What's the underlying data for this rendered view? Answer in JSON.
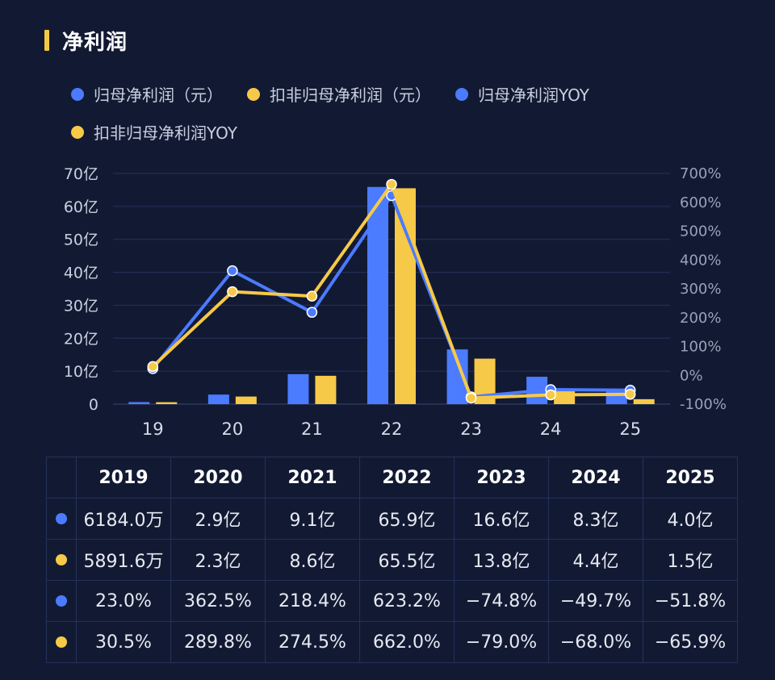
{
  "header": {
    "title": "净利润"
  },
  "legend": [
    {
      "label": "归母净利润（元）",
      "color": "#4b7bff"
    },
    {
      "label": "扣非归母净利润（元）",
      "color": "#f7c948"
    },
    {
      "label": "归母净利润YOY",
      "color": "#4b7bff"
    },
    {
      "label": "扣非归母净利润YOY",
      "color": "#f7c948"
    }
  ],
  "chart_data": {
    "type": "bar",
    "categories": [
      "19",
      "20",
      "21",
      "22",
      "23",
      "24",
      "25"
    ],
    "y_left": {
      "ticks": [
        "0",
        "10亿",
        "20亿",
        "30亿",
        "40亿",
        "50亿",
        "60亿",
        "70亿"
      ],
      "range": [
        0,
        70
      ]
    },
    "y_right": {
      "ticks": [
        "-100%",
        "0%",
        "100%",
        "200%",
        "300%",
        "400%",
        "500%",
        "600%",
        "700%"
      ],
      "range": [
        -100,
        700
      ]
    },
    "grid": true,
    "series": [
      {
        "name": "归母净利润（元）",
        "kind": "bar",
        "axis": "left",
        "color": "#4b7bff",
        "values": [
          0.6184,
          2.9,
          9.1,
          65.9,
          16.6,
          8.3,
          4.0
        ]
      },
      {
        "name": "扣非归母净利润（元）",
        "kind": "bar",
        "axis": "left",
        "color": "#f7c948",
        "values": [
          0.58916,
          2.3,
          8.6,
          65.5,
          13.8,
          4.4,
          1.5
        ]
      },
      {
        "name": "归母净利润YOY",
        "kind": "line",
        "axis": "right",
        "color": "#4b7bff",
        "values": [
          23.0,
          362.5,
          218.4,
          623.2,
          -74.8,
          -49.7,
          -51.8
        ]
      },
      {
        "name": "扣非归母净利润YOY",
        "kind": "line",
        "axis": "right",
        "color": "#f7c948",
        "values": [
          30.5,
          289.8,
          274.5,
          662.0,
          -79.0,
          -68.0,
          -65.9
        ]
      }
    ]
  },
  "table": {
    "years": [
      "2019",
      "2020",
      "2021",
      "2022",
      "2023",
      "2024",
      "2025"
    ],
    "rows": [
      {
        "color": "#4b7bff",
        "values": [
          "6184.0万",
          "2.9亿",
          "9.1亿",
          "65.9亿",
          "16.6亿",
          "8.3亿",
          "4.0亿"
        ]
      },
      {
        "color": "#f7c948",
        "values": [
          "5891.6万",
          "2.3亿",
          "8.6亿",
          "65.5亿",
          "13.8亿",
          "4.4亿",
          "1.5亿"
        ]
      },
      {
        "color": "#4b7bff",
        "values": [
          "23.0%",
          "362.5%",
          "218.4%",
          "623.2%",
          "−74.8%",
          "−49.7%",
          "−51.8%"
        ]
      },
      {
        "color": "#f7c948",
        "values": [
          "30.5%",
          "289.8%",
          "274.5%",
          "662.0%",
          "−79.0%",
          "−68.0%",
          "−65.9%"
        ]
      }
    ]
  }
}
